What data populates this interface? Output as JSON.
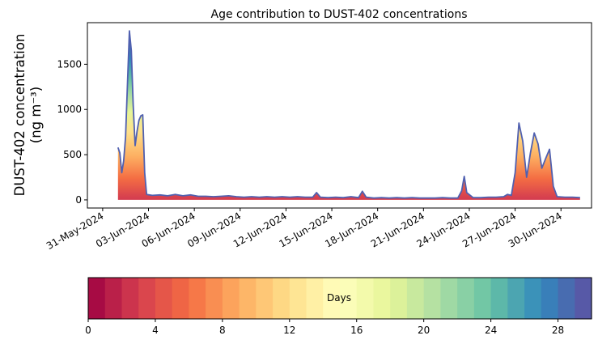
{
  "chart_data": {
    "type": "area",
    "title": "Age contribution to DUST-402 concentrations",
    "ylabel_line1": "DUST-402 concentration",
    "ylabel_line2": "(ng m⁻³)",
    "xlabel": "",
    "x_range": [
      "2024-05-30",
      "2024-07-02"
    ],
    "ylim": [
      -90,
      1960
    ],
    "grid": false,
    "x_tick_labels": [
      "31-May-2024",
      "03-Jun-2024",
      "06-Jun-2024",
      "09-Jun-2024",
      "12-Jun-2024",
      "15-Jun-2024",
      "18-Jun-2024",
      "21-Jun-2024",
      "24-Jun-2024",
      "27-Jun-2024",
      "30-Jun-2024"
    ],
    "x_tick_dates": [
      "2024-05-31",
      "2024-06-03",
      "2024-06-06",
      "2024-06-09",
      "2024-06-12",
      "2024-06-15",
      "2024-06-18",
      "2024-06-21",
      "2024-06-24",
      "2024-06-27",
      "2024-06-30"
    ],
    "y_ticks": [
      0,
      500,
      1000,
      1500
    ],
    "y_tick_labels": [
      "0",
      "500",
      "1000",
      "1500"
    ],
    "series": [
      {
        "values": [
          [
            "2024-06-01T00:00",
            580
          ],
          [
            "2024-06-01T03:00",
            520
          ],
          [
            "2024-06-01T06:00",
            300
          ],
          [
            "2024-06-01T09:00",
            430
          ],
          [
            "2024-06-01T12:00",
            700
          ],
          [
            "2024-06-01T15:00",
            1300
          ],
          [
            "2024-06-01T18:00",
            1870
          ],
          [
            "2024-06-01T21:00",
            1650
          ],
          [
            "2024-06-02T00:00",
            1050
          ],
          [
            "2024-06-02T03:00",
            600
          ],
          [
            "2024-06-02T06:00",
            760
          ],
          [
            "2024-06-02T09:00",
            880
          ],
          [
            "2024-06-02T12:00",
            930
          ],
          [
            "2024-06-02T15:00",
            940
          ],
          [
            "2024-06-02T18:00",
            300
          ],
          [
            "2024-06-02T21:00",
            60
          ],
          [
            "2024-06-03T06:00",
            50
          ],
          [
            "2024-06-03T18:00",
            55
          ],
          [
            "2024-06-04T06:00",
            45
          ],
          [
            "2024-06-04T18:00",
            60
          ],
          [
            "2024-06-05T06:00",
            45
          ],
          [
            "2024-06-05T18:00",
            55
          ],
          [
            "2024-06-06T06:00",
            40
          ],
          [
            "2024-06-06T18:00",
            40
          ],
          [
            "2024-06-07T06:00",
            35
          ],
          [
            "2024-06-07T18:00",
            40
          ],
          [
            "2024-06-08T06:00",
            45
          ],
          [
            "2024-06-08T18:00",
            35
          ],
          [
            "2024-06-09T06:00",
            30
          ],
          [
            "2024-06-09T18:00",
            35
          ],
          [
            "2024-06-10T06:00",
            30
          ],
          [
            "2024-06-10T18:00",
            35
          ],
          [
            "2024-06-11T06:00",
            30
          ],
          [
            "2024-06-11T18:00",
            35
          ],
          [
            "2024-06-12T06:00",
            30
          ],
          [
            "2024-06-12T18:00",
            35
          ],
          [
            "2024-06-13T06:00",
            30
          ],
          [
            "2024-06-13T18:00",
            30
          ],
          [
            "2024-06-14T00:00",
            80
          ],
          [
            "2024-06-14T06:00",
            30
          ],
          [
            "2024-06-14T18:00",
            25
          ],
          [
            "2024-06-15T06:00",
            30
          ],
          [
            "2024-06-15T18:00",
            25
          ],
          [
            "2024-06-16T06:00",
            35
          ],
          [
            "2024-06-16T18:00",
            25
          ],
          [
            "2024-06-17T00:00",
            95
          ],
          [
            "2024-06-17T06:00",
            30
          ],
          [
            "2024-06-17T18:00",
            20
          ],
          [
            "2024-06-18T06:00",
            25
          ],
          [
            "2024-06-18T18:00",
            20
          ],
          [
            "2024-06-19T06:00",
            25
          ],
          [
            "2024-06-19T18:00",
            20
          ],
          [
            "2024-06-20T06:00",
            25
          ],
          [
            "2024-06-20T18:00",
            20
          ],
          [
            "2024-06-21T06:00",
            20
          ],
          [
            "2024-06-21T18:00",
            20
          ],
          [
            "2024-06-22T06:00",
            25
          ],
          [
            "2024-06-22T18:00",
            20
          ],
          [
            "2024-06-23T06:00",
            20
          ],
          [
            "2024-06-23T12:00",
            100
          ],
          [
            "2024-06-23T16:00",
            260
          ],
          [
            "2024-06-23T20:00",
            80
          ],
          [
            "2024-06-24T06:00",
            25
          ],
          [
            "2024-06-24T18:00",
            25
          ],
          [
            "2024-06-25T06:00",
            30
          ],
          [
            "2024-06-25T18:00",
            30
          ],
          [
            "2024-06-26T06:00",
            35
          ],
          [
            "2024-06-26T12:00",
            60
          ],
          [
            "2024-06-26T18:00",
            50
          ],
          [
            "2024-06-27T00:00",
            300
          ],
          [
            "2024-06-27T06:00",
            850
          ],
          [
            "2024-06-27T12:00",
            650
          ],
          [
            "2024-06-27T18:00",
            250
          ],
          [
            "2024-06-28T00:00",
            520
          ],
          [
            "2024-06-28T06:00",
            740
          ],
          [
            "2024-06-28T12:00",
            620
          ],
          [
            "2024-06-28T18:00",
            350
          ],
          [
            "2024-06-29T00:00",
            460
          ],
          [
            "2024-06-29T06:00",
            560
          ],
          [
            "2024-06-29T12:00",
            150
          ],
          [
            "2024-06-29T18:00",
            35
          ],
          [
            "2024-06-30T06:00",
            30
          ],
          [
            "2024-06-30T18:00",
            30
          ],
          [
            "2024-07-01T06:00",
            25
          ]
        ]
      }
    ],
    "colorbar": {
      "label": "Days",
      "min": 0,
      "max": 30,
      "ticks": [
        0,
        4,
        8,
        12,
        16,
        20,
        24,
        28
      ],
      "tick_labels": [
        "0",
        "4",
        "8",
        "12",
        "16",
        "20",
        "24",
        "28"
      ],
      "colormap": "Spectral",
      "bins": 30
    }
  }
}
